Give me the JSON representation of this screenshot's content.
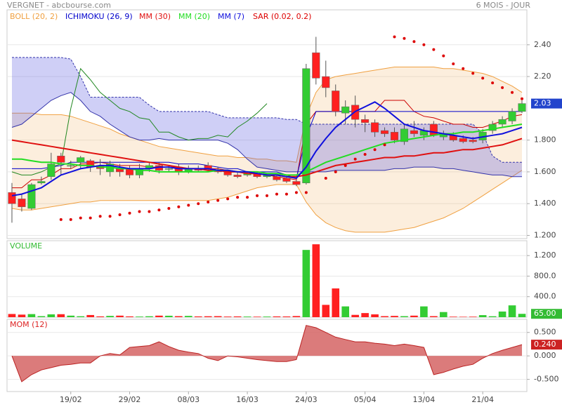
{
  "header": {
    "title": "VERGNET - abcbourse.com",
    "period": "6 MOIS - JOUR"
  },
  "chart_data": [
    {
      "type": "candlestick",
      "up_color": "#33cc33",
      "down_color": "#ff2020",
      "open": [
        1.47,
        1.43,
        1.37,
        1.53,
        1.57,
        1.7,
        1.64,
        1.66,
        1.67,
        1.64,
        1.6,
        1.62,
        1.62,
        1.58,
        1.62,
        1.64,
        1.62,
        1.63,
        1.6,
        1.62,
        1.64,
        1.61,
        1.6,
        1.58,
        1.58,
        1.59,
        1.57,
        1.57,
        1.56,
        1.54,
        1.53,
        2.35,
        2.2,
        2.11,
        1.97,
        2.02,
        1.93,
        1.91,
        1.86,
        1.85,
        1.79,
        1.86,
        1.83,
        1.9,
        1.82,
        1.83,
        1.81,
        1.8,
        1.8,
        1.86,
        1.9,
        1.92,
        1.98
      ],
      "high": [
        1.53,
        1.46,
        1.53,
        1.57,
        1.72,
        1.72,
        1.67,
        1.7,
        1.68,
        1.68,
        1.67,
        1.65,
        1.64,
        1.65,
        1.66,
        1.66,
        1.64,
        1.65,
        1.64,
        1.64,
        1.66,
        1.63,
        1.61,
        1.6,
        1.6,
        1.6,
        1.59,
        1.58,
        1.57,
        1.55,
        2.28,
        2.45,
        2.3,
        2.15,
        2.05,
        2.08,
        1.96,
        1.93,
        1.88,
        1.88,
        1.9,
        1.92,
        1.88,
        1.92,
        1.86,
        1.85,
        1.83,
        1.82,
        1.87,
        1.92,
        1.95,
        2.0,
        2.05
      ],
      "low": [
        1.28,
        1.35,
        1.36,
        1.52,
        1.55,
        1.58,
        1.62,
        1.62,
        1.6,
        1.58,
        1.57,
        1.57,
        1.56,
        1.56,
        1.6,
        1.59,
        1.6,
        1.58,
        1.59,
        1.6,
        1.6,
        1.59,
        1.57,
        1.56,
        1.57,
        1.56,
        1.56,
        1.54,
        1.53,
        1.51,
        1.52,
        2.15,
        2.07,
        1.95,
        1.9,
        1.88,
        1.85,
        1.82,
        1.82,
        1.78,
        1.77,
        1.82,
        1.8,
        1.82,
        1.8,
        1.79,
        1.78,
        1.78,
        1.78,
        1.84,
        1.88,
        1.9,
        1.97
      ],
      "close": [
        1.4,
        1.38,
        1.52,
        1.54,
        1.65,
        1.66,
        1.64,
        1.69,
        1.63,
        1.62,
        1.65,
        1.6,
        1.58,
        1.62,
        1.64,
        1.61,
        1.62,
        1.6,
        1.62,
        1.61,
        1.62,
        1.6,
        1.58,
        1.57,
        1.59,
        1.57,
        1.58,
        1.55,
        1.54,
        1.52,
        2.25,
        2.19,
        2.13,
        1.98,
        2.01,
        1.93,
        1.91,
        1.85,
        1.84,
        1.8,
        1.87,
        1.84,
        1.86,
        1.83,
        1.84,
        1.8,
        1.79,
        1.79,
        1.85,
        1.9,
        1.93,
        1.98,
        2.03
      ],
      "ylim": [
        1.18,
        2.62
      ],
      "yticks": [
        {
          "value": 2.4,
          "label": "2.40"
        },
        {
          "value": 2.2,
          "label": "2.20"
        },
        {
          "value": 1.8,
          "label": "1.800"
        },
        {
          "value": 1.6,
          "label": "1.600"
        },
        {
          "value": 1.4,
          "label": "1.400"
        },
        {
          "value": 1.2,
          "label": "1.200"
        }
      ],
      "grid": true,
      "last_color": "#2244cc",
      "series": [
        {
          "name": "BOLL (20, 2)",
          "color": "#f0a040",
          "upper": [
            1.97,
            1.97,
            1.97,
            1.96,
            1.96,
            1.96,
            1.95,
            1.93,
            1.91,
            1.89,
            1.87,
            1.84,
            1.82,
            1.8,
            1.78,
            1.76,
            1.75,
            1.74,
            1.73,
            1.72,
            1.71,
            1.7,
            1.7,
            1.69,
            1.69,
            1.68,
            1.68,
            1.67,
            1.67,
            1.66,
            1.95,
            2.1,
            2.18,
            2.2,
            2.21,
            2.22,
            2.23,
            2.24,
            2.25,
            2.26,
            2.26,
            2.26,
            2.26,
            2.26,
            2.25,
            2.25,
            2.24,
            2.23,
            2.22,
            2.2,
            2.17,
            2.14,
            2.1
          ],
          "lower": [
            1.37,
            1.36,
            1.36,
            1.37,
            1.38,
            1.39,
            1.4,
            1.41,
            1.41,
            1.42,
            1.42,
            1.42,
            1.42,
            1.42,
            1.42,
            1.42,
            1.42,
            1.42,
            1.42,
            1.42,
            1.42,
            1.43,
            1.44,
            1.46,
            1.48,
            1.5,
            1.51,
            1.52,
            1.52,
            1.52,
            1.41,
            1.33,
            1.28,
            1.25,
            1.23,
            1.22,
            1.22,
            1.22,
            1.22,
            1.23,
            1.24,
            1.25,
            1.27,
            1.29,
            1.31,
            1.34,
            1.37,
            1.41,
            1.45,
            1.49,
            1.53,
            1.57,
            1.61
          ]
        },
        {
          "name": "ICHIMOKU (26, 9)",
          "color": "#0000cc",
          "span_a": [
            2.32,
            2.32,
            2.32,
            2.32,
            2.32,
            2.32,
            2.31,
            2.2,
            2.07,
            2.07,
            2.07,
            2.07,
            2.07,
            2.07,
            2.02,
            1.98,
            1.98,
            1.98,
            1.98,
            1.98,
            1.98,
            1.96,
            1.94,
            1.94,
            1.94,
            1.94,
            1.94,
            1.94,
            1.93,
            1.93,
            1.9,
            1.9,
            1.9,
            1.9,
            1.9,
            1.9,
            1.9,
            1.9,
            1.9,
            1.9,
            1.9,
            1.9,
            1.9,
            1.9,
            1.9,
            1.9,
            1.9,
            1.9,
            1.84,
            1.7,
            1.66,
            1.66,
            1.66
          ],
          "span_b": [
            1.88,
            1.9,
            1.95,
            2.0,
            2.05,
            2.08,
            2.1,
            2.05,
            1.98,
            1.95,
            1.9,
            1.86,
            1.82,
            1.8,
            1.8,
            1.81,
            1.8,
            1.8,
            1.8,
            1.8,
            1.8,
            1.8,
            1.78,
            1.74,
            1.68,
            1.63,
            1.62,
            1.61,
            1.6,
            1.6,
            1.6,
            1.6,
            1.6,
            1.61,
            1.61,
            1.61,
            1.61,
            1.61,
            1.61,
            1.62,
            1.62,
            1.63,
            1.63,
            1.63,
            1.62,
            1.62,
            1.61,
            1.6,
            1.59,
            1.58,
            1.58,
            1.57,
            1.57
          ],
          "tenkan": [
            1.5,
            1.5,
            1.55,
            1.55,
            1.58,
            1.62,
            1.62,
            1.65,
            1.65,
            1.66,
            1.65,
            1.64,
            1.64,
            1.64,
            1.63,
            1.63,
            1.63,
            1.63,
            1.62,
            1.62,
            1.62,
            1.62,
            1.61,
            1.6,
            1.6,
            1.59,
            1.58,
            1.57,
            1.56,
            1.55,
            1.9,
            1.98,
            1.98,
            1.98,
            1.98,
            1.98,
            1.98,
            1.98,
            2.05,
            2.05,
            2.05,
            1.98,
            1.95,
            1.94,
            1.92,
            1.9,
            1.9,
            1.88,
            1.88,
            1.9,
            1.92,
            1.95,
            1.96
          ],
          "kijun": [
            1.62,
            1.62,
            1.62,
            1.62,
            1.63,
            1.64,
            1.66,
            1.66,
            1.66,
            1.66,
            1.66,
            1.66,
            1.66,
            1.66,
            1.66,
            1.66,
            1.66,
            1.65,
            1.65,
            1.65,
            1.64,
            1.63,
            1.62,
            1.62,
            1.6,
            1.6,
            1.6,
            1.6,
            1.58,
            1.56,
            1.82,
            1.98,
            1.98,
            1.98,
            1.98,
            1.98,
            1.98,
            1.98,
            1.98,
            1.98,
            1.98,
            1.98,
            1.98,
            1.98,
            1.98,
            1.98,
            1.98,
            1.98,
            1.98,
            1.98,
            1.98,
            1.98,
            1.98
          ],
          "chikou": [
            1.6,
            1.58,
            1.58,
            1.6,
            1.63,
            1.65,
            2.0,
            2.25,
            2.18,
            2.1,
            2.05,
            2.0,
            1.98,
            1.94,
            1.93,
            1.85,
            1.85,
            1.82,
            1.8,
            1.81,
            1.81,
            1.83,
            1.82,
            1.88,
            1.92,
            1.97,
            2.03,
            null,
            null,
            null,
            null,
            null,
            null,
            null,
            null,
            null,
            null,
            null,
            null,
            null,
            null,
            null,
            null,
            null,
            null,
            null,
            null,
            null,
            null,
            null,
            null,
            null,
            null
          ]
        },
        {
          "name": "MM (30)",
          "color": "#e01010",
          "values": [
            1.8,
            1.79,
            1.78,
            1.77,
            1.76,
            1.75,
            1.74,
            1.73,
            1.72,
            1.71,
            1.7,
            1.69,
            1.68,
            1.67,
            1.66,
            1.65,
            1.64,
            1.63,
            1.62,
            1.62,
            1.61,
            1.61,
            1.6,
            1.6,
            1.59,
            1.59,
            1.58,
            1.58,
            1.57,
            1.57,
            1.58,
            1.6,
            1.62,
            1.64,
            1.65,
            1.66,
            1.67,
            1.68,
            1.69,
            1.69,
            1.7,
            1.7,
            1.71,
            1.72,
            1.72,
            1.73,
            1.74,
            1.74,
            1.75,
            1.76,
            1.77,
            1.79,
            1.81
          ]
        },
        {
          "name": "MM (20)",
          "color": "#22dd22",
          "values": [
            1.68,
            1.68,
            1.67,
            1.66,
            1.66,
            1.65,
            1.65,
            1.64,
            1.64,
            1.63,
            1.63,
            1.62,
            1.62,
            1.61,
            1.61,
            1.6,
            1.6,
            1.6,
            1.6,
            1.6,
            1.6,
            1.61,
            1.61,
            1.6,
            1.6,
            1.6,
            1.59,
            1.59,
            1.58,
            1.58,
            1.6,
            1.63,
            1.66,
            1.68,
            1.7,
            1.72,
            1.74,
            1.76,
            1.78,
            1.79,
            1.8,
            1.81,
            1.82,
            1.83,
            1.84,
            1.84,
            1.85,
            1.85,
            1.86,
            1.87,
            1.88,
            1.89,
            1.9
          ]
        },
        {
          "name": "MM (7)",
          "color": "#1010dd",
          "values": [
            1.45,
            1.46,
            1.48,
            1.5,
            1.54,
            1.58,
            1.6,
            1.62,
            1.63,
            1.64,
            1.64,
            1.63,
            1.62,
            1.62,
            1.62,
            1.63,
            1.63,
            1.62,
            1.62,
            1.62,
            1.62,
            1.61,
            1.61,
            1.6,
            1.6,
            1.59,
            1.58,
            1.58,
            1.57,
            1.56,
            1.63,
            1.73,
            1.81,
            1.88,
            1.93,
            1.98,
            2.01,
            2.04,
            2.0,
            1.95,
            1.9,
            1.88,
            1.86,
            1.85,
            1.84,
            1.83,
            1.82,
            1.81,
            1.82,
            1.83,
            1.84,
            1.86,
            1.88
          ]
        },
        {
          "name": "SAR (0.02, 0.2)",
          "color": "#dd0000",
          "dots": true,
          "values": [
            null,
            null,
            null,
            null,
            null,
            1.3,
            1.3,
            1.31,
            1.31,
            1.32,
            1.32,
            1.33,
            1.34,
            1.35,
            1.35,
            1.36,
            1.37,
            1.38,
            1.39,
            1.4,
            1.41,
            1.42,
            1.43,
            1.44,
            1.44,
            1.45,
            1.45,
            1.46,
            1.46,
            1.47,
            1.47,
            null,
            1.56,
            1.6,
            1.64,
            1.68,
            1.71,
            1.74,
            1.77,
            2.45,
            2.44,
            2.42,
            2.4,
            2.37,
            2.33,
            2.28,
            2.25,
            2.22,
            2.19,
            2.16,
            2.13,
            2.1,
            2.06
          ]
        }
      ]
    },
    {
      "type": "bar",
      "label": "VOLUME",
      "label_color": "#33bb33",
      "values": [
        62,
        50,
        60,
        20,
        55,
        58,
        30,
        18,
        42,
        15,
        25,
        30,
        15,
        12,
        18,
        30,
        28,
        20,
        25,
        15,
        18,
        20,
        12,
        15,
        12,
        10,
        12,
        15,
        14,
        22,
        1310,
        1420,
        240,
        560,
        210,
        45,
        80,
        55,
        20,
        25,
        20,
        30,
        210,
        20,
        100,
        10,
        8,
        10,
        40,
        18,
        110,
        230,
        65
      ],
      "last_value_label": "65.00",
      "last_color": "#33bb33",
      "ylim": [
        0,
        1490
      ],
      "yticks": [
        {
          "value": 1200,
          "label": "1.200"
        },
        {
          "value": 800,
          "label": "800.0"
        },
        {
          "value": 400,
          "label": "400.0"
        }
      ],
      "grid": true
    },
    {
      "type": "area",
      "label": "MOM (12)",
      "label_color": "#dd2222",
      "color": "#d25a5a",
      "values": [
        0.0,
        -0.55,
        -0.4,
        -0.3,
        -0.25,
        -0.2,
        -0.18,
        -0.15,
        -0.15,
        0.0,
        0.05,
        0.02,
        0.18,
        0.2,
        0.22,
        0.3,
        0.2,
        0.12,
        0.08,
        0.05,
        -0.05,
        -0.1,
        0.0,
        -0.02,
        -0.05,
        -0.08,
        -0.1,
        -0.12,
        -0.12,
        -0.08,
        0.65,
        0.6,
        0.5,
        0.4,
        0.35,
        0.3,
        0.3,
        0.27,
        0.25,
        0.22,
        0.25,
        0.22,
        0.18,
        -0.4,
        -0.35,
        -0.28,
        -0.22,
        -0.18,
        -0.05,
        0.05,
        0.12,
        0.18,
        0.24
      ],
      "last_value_label": "0.240",
      "last_color": "#cc2222",
      "categories": [
        null,
        null,
        null,
        null,
        null,
        null,
        "19/02",
        null,
        null,
        null,
        null,
        null,
        "29/02",
        null,
        null,
        null,
        null,
        null,
        "08/03",
        null,
        null,
        null,
        null,
        null,
        "16/03",
        null,
        null,
        null,
        null,
        null,
        "24/03",
        null,
        null,
        null,
        null,
        null,
        "05/04",
        null,
        null,
        null,
        null,
        null,
        "13/04",
        null,
        null,
        null,
        null,
        null,
        "21/04",
        null,
        null,
        null,
        null
      ],
      "ylim": [
        -0.76,
        0.78
      ],
      "yticks": [
        {
          "value": 0.5,
          "label": "0.500"
        },
        {
          "value": 0,
          "label": "0.000"
        },
        {
          "value": -0.5,
          "label": "-0.500"
        }
      ],
      "grid": true
    }
  ]
}
